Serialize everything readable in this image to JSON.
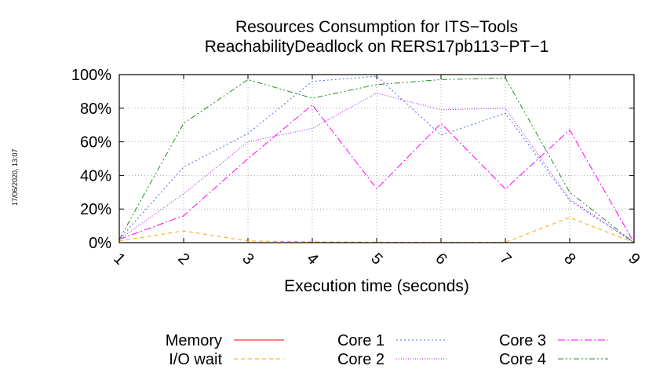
{
  "timestamp": "17/06/2020, 13:07",
  "chart_data": {
    "type": "line",
    "title": "Resources Consumption for ITS−Tools",
    "subtitle": "ReachabilityDeadlock on RERS17pb113−PT−1",
    "xlabel": "Execution time (seconds)",
    "ylabel": "",
    "x": [
      1,
      2,
      3,
      4,
      5,
      6,
      7,
      8,
      9
    ],
    "xlim": [
      1,
      9
    ],
    "ylim": [
      0,
      100
    ],
    "y_ticks": [
      "0%",
      "20%",
      "40%",
      "60%",
      "80%",
      "100%"
    ],
    "x_ticks": [
      "1",
      "2",
      "3",
      "4",
      "5",
      "6",
      "7",
      "8",
      "9"
    ],
    "grid": true,
    "legend_position": "bottom",
    "series": [
      {
        "name": "Memory",
        "color": "#ff0000",
        "dash": "solid",
        "values": [
          0,
          0,
          0,
          0,
          0,
          0,
          0,
          0,
          0
        ]
      },
      {
        "name": "I/O wait",
        "color": "#ffa500",
        "dash": "dashed",
        "values": [
          1,
          7,
          1,
          0.5,
          0.3,
          0.2,
          0.2,
          15,
          0
        ]
      },
      {
        "name": "Core 1",
        "color": "#4d6ed9",
        "dash": "dotted",
        "values": [
          2,
          45,
          65,
          96,
          99,
          64,
          77,
          25,
          0
        ]
      },
      {
        "name": "Core 2",
        "color": "#a020f0",
        "dash": "dotted2",
        "values": [
          2,
          29,
          60,
          68,
          89,
          79,
          80,
          26,
          0
        ]
      },
      {
        "name": "Core 3",
        "color": "#ff00ff",
        "dash": "dashdot",
        "values": [
          2,
          16,
          50,
          82,
          32,
          71,
          32,
          67,
          0
        ]
      },
      {
        "name": "Core 4",
        "color": "#228b22",
        "dash": "dashdotdot",
        "values": [
          2,
          71,
          97,
          86,
          94,
          97,
          98,
          30,
          0
        ]
      }
    ]
  }
}
